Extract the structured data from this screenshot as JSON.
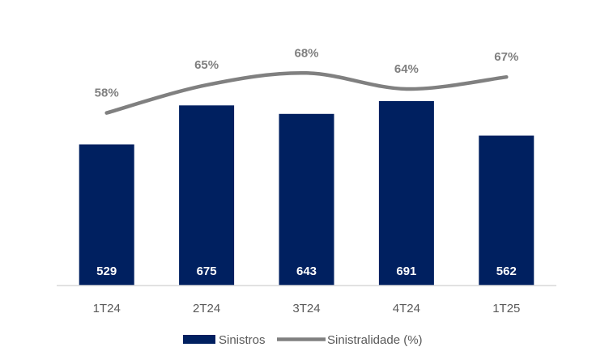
{
  "chart_data": {
    "type": "bar",
    "categories": [
      "1T24",
      "2T24",
      "3T24",
      "4T24",
      "1T25"
    ],
    "series": [
      {
        "name": "Sinistros",
        "type": "bar",
        "values": [
          529,
          675,
          643,
          691,
          562
        ],
        "labels": [
          "529",
          "675",
          "643",
          "691",
          "562"
        ],
        "color": "#002060"
      },
      {
        "name": "Sinistralidade (%)",
        "type": "line",
        "values": [
          58,
          65,
          68,
          64,
          67
        ],
        "labels": [
          "58%",
          "65%",
          "68%",
          "64%",
          "67%"
        ],
        "color": "#808080"
      }
    ],
    "legend_position": "bottom",
    "grid": false,
    "axis_color": "#d9d9d9"
  }
}
